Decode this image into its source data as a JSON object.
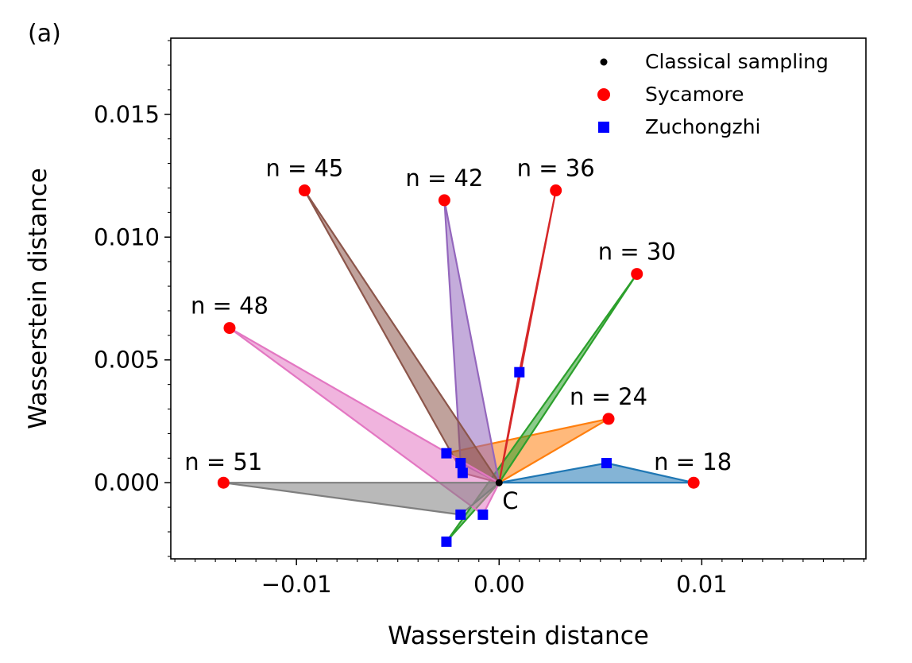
{
  "panel_label": "(a)",
  "chart_data": {
    "type": "scatter",
    "xlabel": "Wasserstein distance",
    "ylabel": "Wasserstein distance",
    "xlim": [
      -0.0162,
      0.0181
    ],
    "ylim": [
      -0.0031,
      0.0181
    ],
    "x_ticks": [
      -0.01,
      0.0,
      0.01
    ],
    "x_tick_labels": [
      "−0.01",
      "0.00",
      "0.01"
    ],
    "y_ticks": [
      0.0,
      0.005,
      0.01,
      0.015
    ],
    "y_tick_labels": [
      "0.000",
      "0.005",
      "0.010",
      "0.015"
    ],
    "x_minor_step": 0.001,
    "y_minor_step": 0.001,
    "grid": false,
    "legend_position": "top-right",
    "legend": [
      "Classical sampling",
      "Sycamore",
      "Zuchongzhi"
    ],
    "classical_point": {
      "label": "C",
      "x": 0.0,
      "y": 0.0
    },
    "series": [
      {
        "name": "Classical sampling",
        "marker": "dot",
        "color": "#000000",
        "points": [
          {
            "x": 0.0,
            "y": 0.0
          }
        ]
      },
      {
        "name": "Sycamore",
        "marker": "circle",
        "color": "#ff0000",
        "points": [
          {
            "label": "n = 18",
            "x": 0.0096,
            "y": 0.0
          },
          {
            "label": "n = 24",
            "x": 0.0054,
            "y": 0.0026
          },
          {
            "label": "n = 30",
            "x": 0.0068,
            "y": 0.0085
          },
          {
            "label": "n = 36",
            "x": 0.0028,
            "y": 0.0119
          },
          {
            "label": "n = 42",
            "x": -0.0027,
            "y": 0.0115
          },
          {
            "label": "n = 45",
            "x": -0.0096,
            "y": 0.0119
          },
          {
            "label": "n = 48",
            "x": -0.0133,
            "y": 0.0063
          },
          {
            "label": "n = 51",
            "x": -0.0136,
            "y": 0.0
          }
        ]
      },
      {
        "name": "Zuchongzhi",
        "marker": "square",
        "color": "#0000ff",
        "points": [
          {
            "x": 0.0053,
            "y": 0.0008
          },
          {
            "x": -0.0026,
            "y": 0.0012
          },
          {
            "x": -0.0008,
            "y": -0.0013
          },
          {
            "x": 0.001,
            "y": 0.0045
          },
          {
            "x": -0.0019,
            "y": 0.0008
          },
          {
            "x": -0.0018,
            "y": 0.0004
          },
          {
            "x": -0.0019,
            "y": -0.0013
          },
          {
            "x": -0.0026,
            "y": -0.0024
          }
        ]
      }
    ],
    "triangles": [
      {
        "n": 18,
        "color": "#1f77b4",
        "syc": {
          "x": 0.0096,
          "y": 0.0
        },
        "zu": {
          "x": 0.0053,
          "y": 0.0008
        }
      },
      {
        "n": 24,
        "color": "#ff7f0e",
        "syc": {
          "x": 0.0054,
          "y": 0.0026
        },
        "zu": {
          "x": -0.0026,
          "y": 0.0012
        }
      },
      {
        "n": 30,
        "color": "#2ca02c",
        "syc": {
          "x": 0.0068,
          "y": 0.0085
        },
        "zu": {
          "x": -0.0026,
          "y": -0.0024
        }
      },
      {
        "n": 36,
        "color": "#d62728",
        "syc": {
          "x": 0.0028,
          "y": 0.0119
        },
        "zu": {
          "x": 0.001,
          "y": 0.0045
        }
      },
      {
        "n": 42,
        "color": "#9467bd",
        "syc": {
          "x": -0.0027,
          "y": 0.0115
        },
        "zu": {
          "x": -0.0019,
          "y": 0.0008
        }
      },
      {
        "n": 45,
        "color": "#8c564b",
        "syc": {
          "x": -0.0096,
          "y": 0.0119
        },
        "zu": {
          "x": -0.0018,
          "y": 0.0004
        }
      },
      {
        "n": 48,
        "color": "#e377c2",
        "syc": {
          "x": -0.0133,
          "y": 0.0063
        },
        "zu": {
          "x": -0.0008,
          "y": -0.0013
        }
      },
      {
        "n": 51,
        "color": "#7f7f7f",
        "syc": {
          "x": -0.0136,
          "y": 0.0
        },
        "zu": {
          "x": -0.0019,
          "y": -0.0013
        }
      }
    ]
  }
}
